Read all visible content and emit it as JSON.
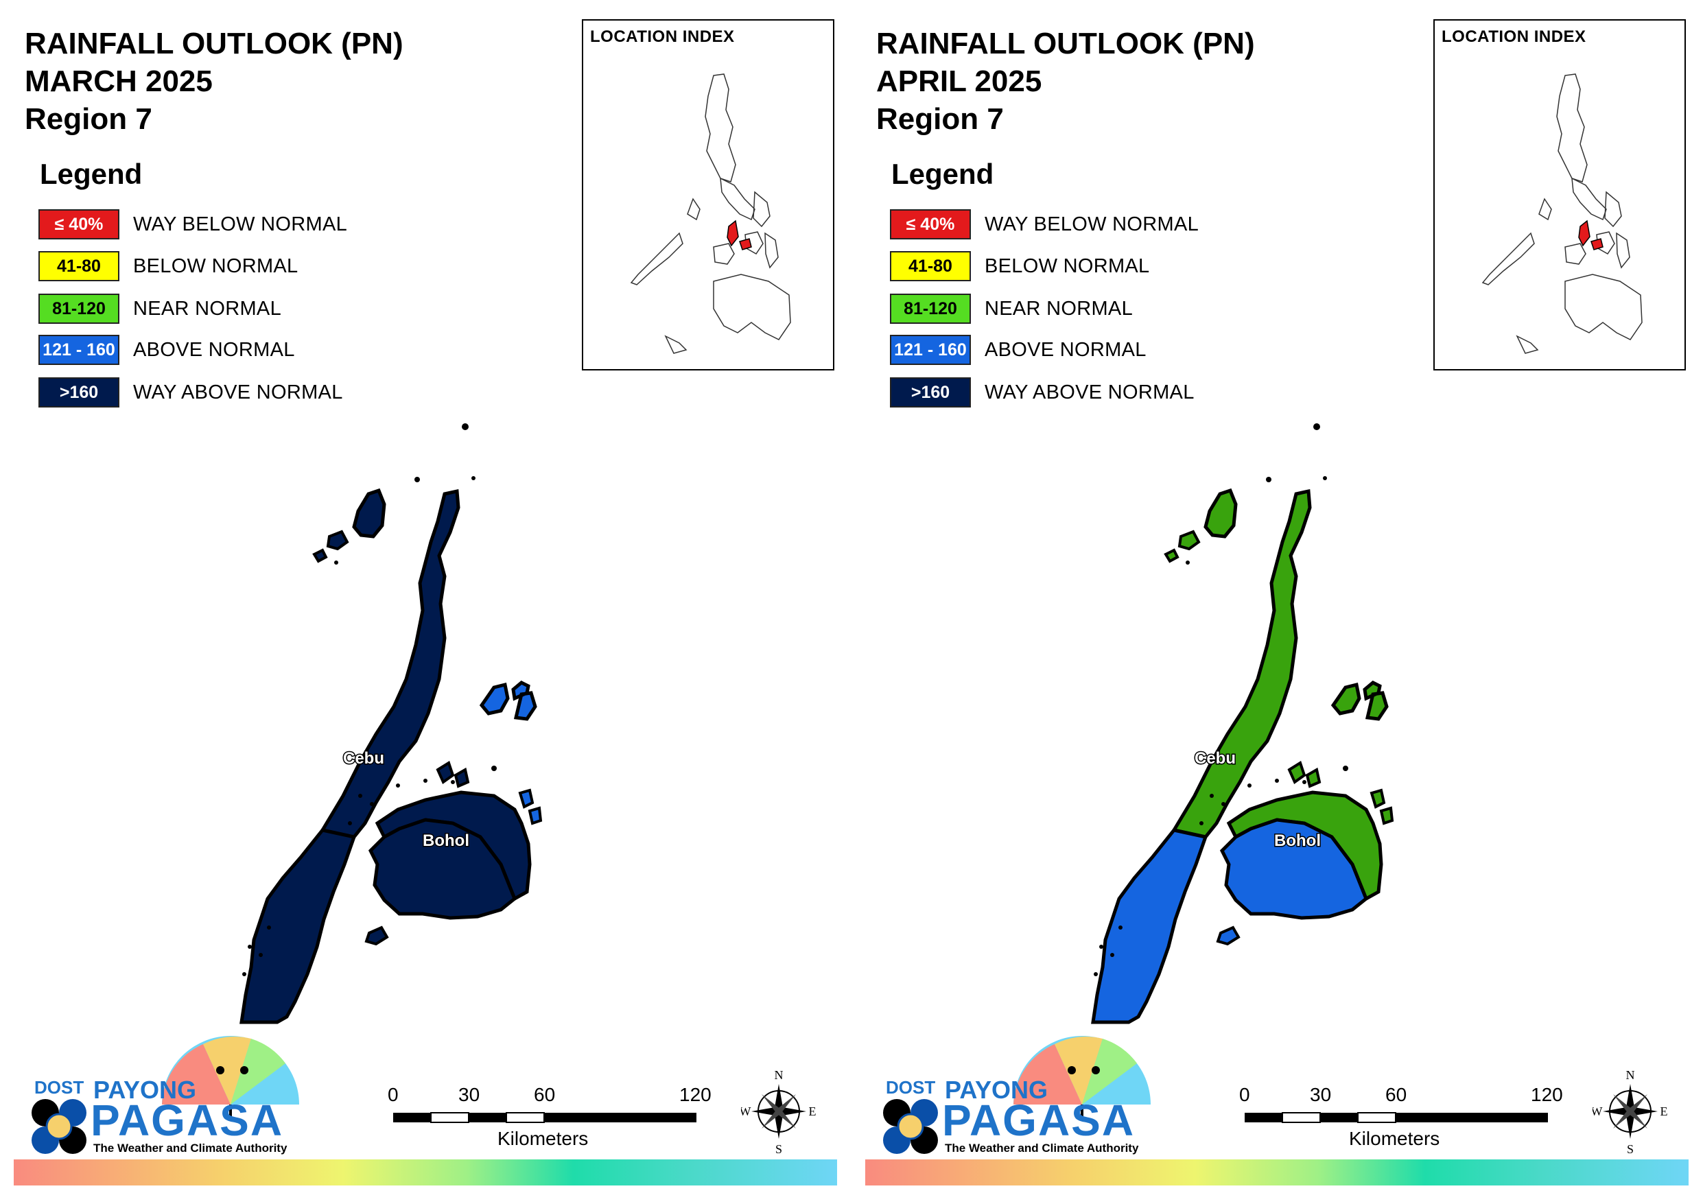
{
  "panels": [
    {
      "title_line1": "RAINFALL OUTLOOK (PN)",
      "title_line2": "MARCH 2025",
      "title_line3": "Region 7",
      "cebu_north_color": "#001a4d",
      "cebu_south_color": "#001a4d",
      "bohol_north_color": "#001a4d",
      "bohol_south_color": "#001a4d",
      "camotes_color": "#1565e0"
    },
    {
      "title_line1": "RAINFALL OUTLOOK (PN)",
      "title_line2": "APRIL 2025",
      "title_line3": "Region 7",
      "cebu_north_color": "#39a30d",
      "cebu_south_color": "#1565e0",
      "bohol_north_color": "#39a30d",
      "bohol_south_color": "#1565e0",
      "camotes_color": "#39a30d"
    }
  ],
  "legend": {
    "heading": "Legend",
    "items": [
      {
        "code": "≤ 40%",
        "label": "WAY BELOW NORMAL",
        "color": "#e31a1c",
        "text_color": "#ffffff"
      },
      {
        "code": "41-80",
        "label": "BELOW NORMAL",
        "color": "#ffff00",
        "text_color": "#000000"
      },
      {
        "code": "81-120",
        "label": "NEAR NORMAL",
        "color": "#55dd22",
        "text_color": "#000000"
      },
      {
        "code": "121 - 160",
        "label": "ABOVE NORMAL",
        "color": "#1565e0",
        "text_color": "#ffffff"
      },
      {
        "code": ">160",
        "label": "WAY ABOVE NORMAL",
        "color": "#001a4d",
        "text_color": "#ffffff"
      }
    ]
  },
  "inset": {
    "title": "LOCATION INDEX",
    "highlight_color": "#e31a1c"
  },
  "islands": {
    "cebu": "Cebu",
    "bohol": "Bohol"
  },
  "logo": {
    "dost": "DOST",
    "payong": "PAYONG",
    "pagasa": "PAGASA",
    "tagline": "The Weather and Climate Authority"
  },
  "scale": {
    "ticks": [
      "0",
      "30",
      "60",
      "120"
    ],
    "unit": "Kilometers"
  },
  "compass": {
    "n": "N",
    "s": "S",
    "e": "E",
    "w": "W"
  }
}
